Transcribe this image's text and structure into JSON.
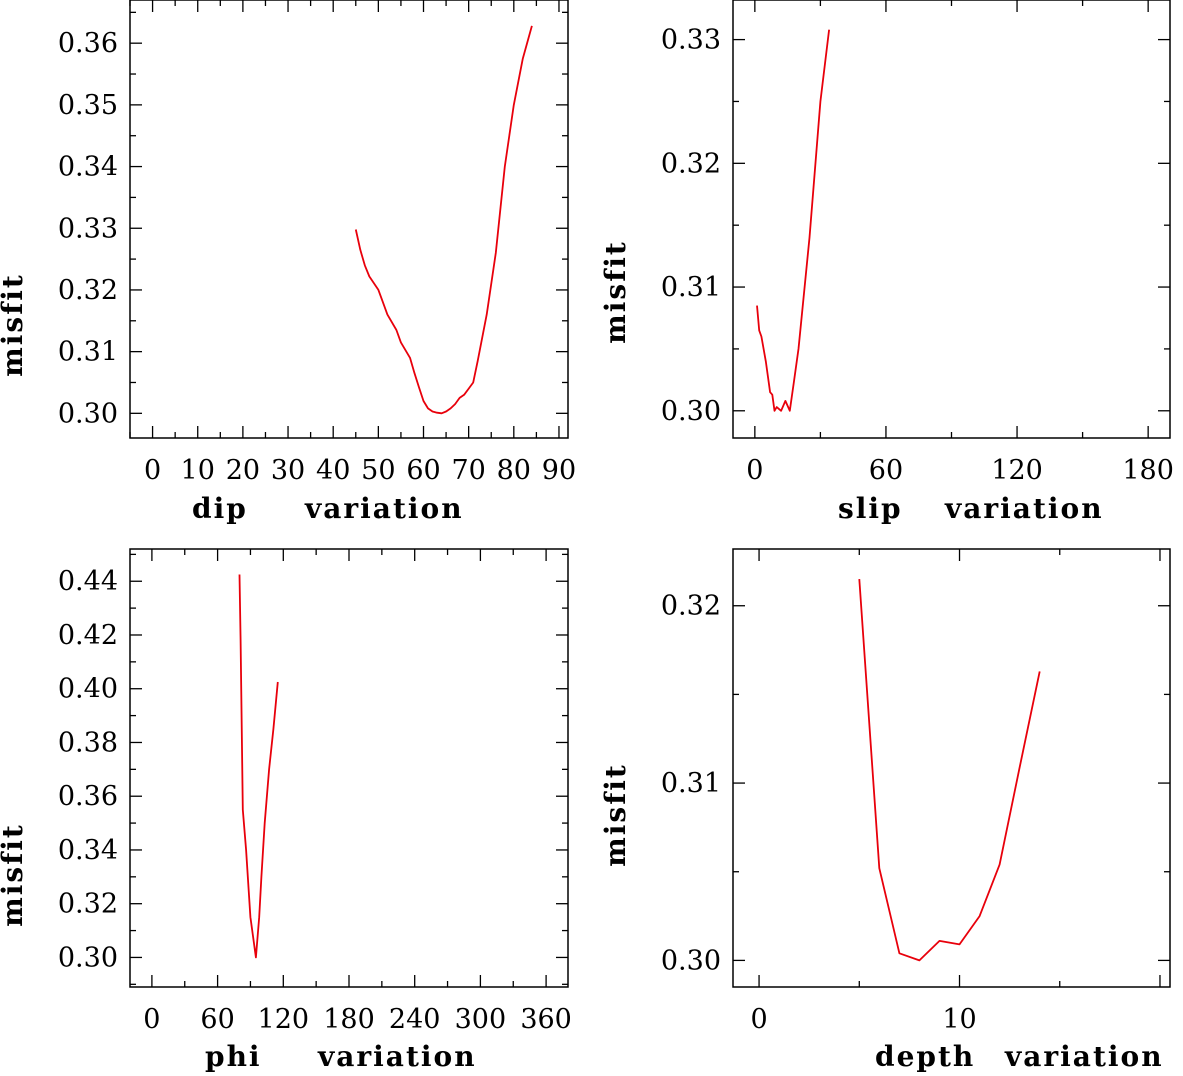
{
  "chart_data": [
    {
      "type": "line",
      "id": "dip",
      "ylabel": "misfit",
      "xlabel_left": "dip",
      "xlabel_right": "variation",
      "xlim": [
        -5,
        92
      ],
      "ylim": [
        0.296,
        0.367
      ],
      "xticks": [
        0,
        10,
        20,
        30,
        40,
        50,
        60,
        70,
        80,
        90
      ],
      "xtick_labels": [
        "0",
        "10",
        "20",
        "30",
        "40",
        "50",
        "60",
        "70",
        "80",
        "90"
      ],
      "yticks": [
        0.3,
        0.31,
        0.32,
        0.33,
        0.34,
        0.35,
        0.36
      ],
      "ytick_labels": [
        "0.30",
        "0.31",
        "0.32",
        "0.33",
        "0.34",
        "0.35",
        "0.36"
      ],
      "color": "#e8000b",
      "series": [
        {
          "name": "misfit",
          "x": [
            45,
            46,
            47,
            48,
            50,
            52,
            54,
            55,
            57,
            58,
            59,
            60,
            61,
            62,
            63,
            64,
            65,
            66,
            67,
            68,
            69,
            70,
            71,
            72,
            74,
            76,
            78,
            80,
            82,
            84
          ],
          "y": [
            0.3298,
            0.3265,
            0.324,
            0.3222,
            0.32,
            0.316,
            0.3135,
            0.3115,
            0.309,
            0.3065,
            0.3042,
            0.302,
            0.3008,
            0.3003,
            0.3001,
            0.3,
            0.3003,
            0.3008,
            0.3015,
            0.3025,
            0.303,
            0.304,
            0.305,
            0.3085,
            0.316,
            0.326,
            0.34,
            0.35,
            0.3575,
            0.3628
          ]
        }
      ]
    },
    {
      "type": "line",
      "id": "slip",
      "ylabel": "misfit",
      "xlabel_left": "slip",
      "xlabel_right": "variation",
      "xlim": [
        -10,
        190
      ],
      "ylim": [
        0.2978,
        0.3332
      ],
      "xticks": [
        0,
        60,
        120,
        180
      ],
      "xtick_labels": [
        "0",
        "60",
        "120",
        "180"
      ],
      "yticks": [
        0.3,
        0.31,
        0.32,
        0.33
      ],
      "ytick_labels": [
        "0.30",
        "0.31",
        "0.32",
        "0.33"
      ],
      "color": "#e8000b",
      "series": [
        {
          "name": "misfit",
          "x": [
            1,
            2,
            3,
            5,
            7,
            8,
            9,
            10,
            12,
            14,
            16,
            18,
            20,
            25,
            30,
            34
          ],
          "y": [
            0.3085,
            0.3065,
            0.306,
            0.304,
            0.3015,
            0.3013,
            0.3,
            0.3003,
            0.3,
            0.3008,
            0.3,
            0.3025,
            0.305,
            0.314,
            0.325,
            0.3308
          ]
        }
      ]
    },
    {
      "type": "line",
      "id": "phi",
      "ylabel": "misfit",
      "xlabel_left": "phi",
      "xlabel_right": "variation",
      "xlim": [
        -20,
        380
      ],
      "ylim": [
        0.289,
        0.452
      ],
      "xticks": [
        0,
        60,
        120,
        180,
        240,
        300,
        360
      ],
      "xtick_labels": [
        "0",
        "60",
        "120",
        "180",
        "240",
        "300",
        "360"
      ],
      "yticks": [
        0.3,
        0.32,
        0.34,
        0.36,
        0.38,
        0.4,
        0.42,
        0.44
      ],
      "ytick_labels": [
        "0.30",
        "0.32",
        "0.34",
        "0.36",
        "0.38",
        "0.40",
        "0.42",
        "0.44"
      ],
      "color": "#e8000b",
      "series": [
        {
          "name": "misfit",
          "x": [
            80,
            81,
            83,
            86,
            90,
            95,
            98,
            100,
            103,
            107,
            111,
            115
          ],
          "y": [
            0.4425,
            0.418,
            0.355,
            0.34,
            0.315,
            0.3,
            0.315,
            0.33,
            0.35,
            0.37,
            0.385,
            0.4025
          ]
        }
      ]
    },
    {
      "type": "line",
      "id": "depth",
      "ylabel": "misfit",
      "xlabel_left": "depth",
      "xlabel_right": "variation",
      "xlim": [
        -1.3,
        20.5
      ],
      "ylim": [
        0.2985,
        0.3232
      ],
      "xticks": [
        0,
        10
      ],
      "xtick_labels": [
        "0",
        "10"
      ],
      "yticks": [
        0.3,
        0.31,
        0.32
      ],
      "ytick_labels": [
        "0.30",
        "0.31",
        "0.32"
      ],
      "color": "#e8000b",
      "series": [
        {
          "name": "misfit",
          "x": [
            5,
            6,
            7,
            8,
            9,
            10,
            11,
            12,
            13,
            14
          ],
          "y": [
            0.3215,
            0.3052,
            0.3004,
            0.3,
            0.3011,
            0.3009,
            0.3025,
            0.3054,
            0.3109,
            0.3163
          ]
        }
      ]
    }
  ]
}
